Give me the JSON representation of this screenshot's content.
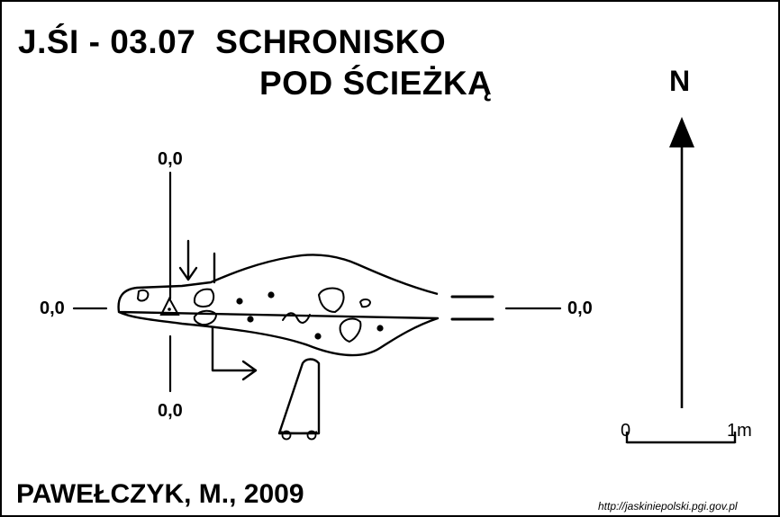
{
  "map": {
    "cave_id": "J.ŚI - 03.07",
    "name_line1": "SCHRONISKO",
    "name_line2": "POD ŚCIEŻKĄ",
    "section_labels": {
      "top": "0,0",
      "bottom": "0,0",
      "left": "0,0",
      "right": "0,0"
    },
    "north_label": "N",
    "scale": {
      "start": "0",
      "end": "1m"
    },
    "author": "PAWEŁCZYK, M., 2009",
    "source_url": "http://jaskiniepolski.pgi.gov.pl"
  }
}
